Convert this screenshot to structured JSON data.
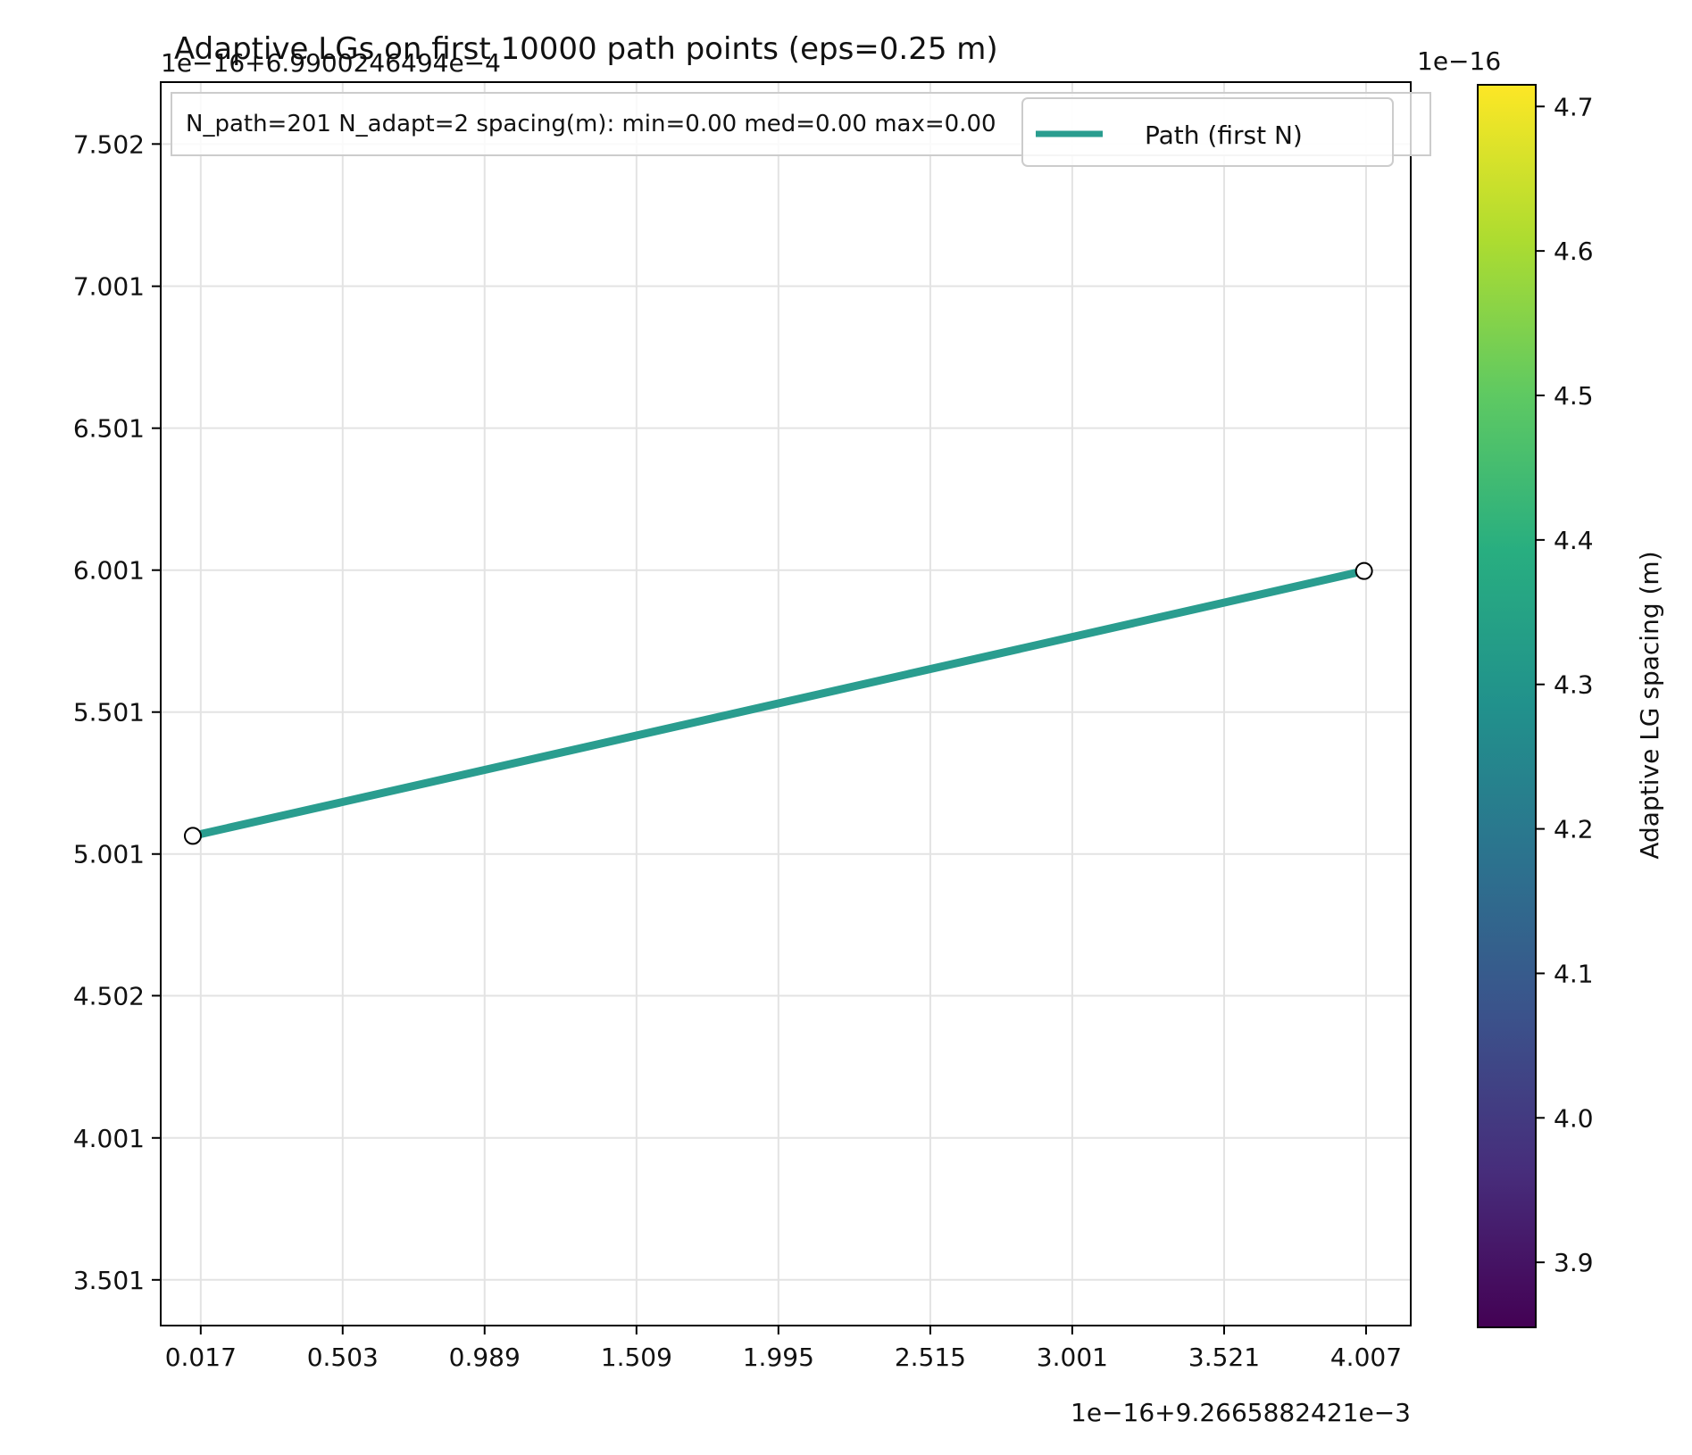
{
  "chart_data": {
    "type": "line",
    "title": "Adaptive LGs on first 10000 path points (eps=0.25 m)",
    "x_offset_label": "1e−16+9.2665882421e−3",
    "y_offset_label": "1e−16+6.9900246494e−4",
    "x_ticks": [
      "0.017",
      "0.503",
      "0.989",
      "1.509",
      "1.995",
      "2.515",
      "3.001",
      "3.521",
      "4.007"
    ],
    "y_ticks": [
      "7.502",
      "7.001",
      "6.501",
      "6.001",
      "5.501",
      "5.001",
      "4.502",
      "4.001",
      "3.501"
    ],
    "x_tick_values": [
      0.017,
      0.503,
      0.989,
      1.509,
      1.995,
      2.515,
      3.001,
      3.521,
      4.007
    ],
    "y_tick_values": [
      7.502,
      7.001,
      6.501,
      6.001,
      5.501,
      5.001,
      4.502,
      4.001,
      3.501
    ],
    "xlim": [
      -0.12,
      4.16
    ],
    "ylim": [
      3.34,
      7.72
    ],
    "series": [
      {
        "name": "Path (first N)",
        "color": "#2a9d8f",
        "points": [
          {
            "x": -0.01,
            "y": 5.065
          },
          {
            "x": 4.0,
            "y": 5.998
          }
        ]
      }
    ],
    "markers": [
      {
        "x": -0.01,
        "y": 5.065
      },
      {
        "x": 4.0,
        "y": 5.998
      }
    ],
    "info_box": "N_path=201  N_adapt=2   spacing(m): min=0.00  med=0.00  max=0.00",
    "legend": {
      "label": "Path (first N)",
      "position": "top-right"
    },
    "grid": true,
    "colorbar": {
      "label": "Adaptive LG spacing (m)",
      "offset_label": "1e−16",
      "colormap": "viridis",
      "ticks": [
        "4.7",
        "4.6",
        "4.5",
        "4.4",
        "4.3",
        "4.2",
        "4.1",
        "4.0",
        "3.9"
      ],
      "tick_values": [
        4.7,
        4.6,
        4.5,
        4.4,
        4.3,
        4.2,
        4.1,
        4.0,
        3.9
      ],
      "range": [
        3.855,
        4.715
      ]
    }
  }
}
